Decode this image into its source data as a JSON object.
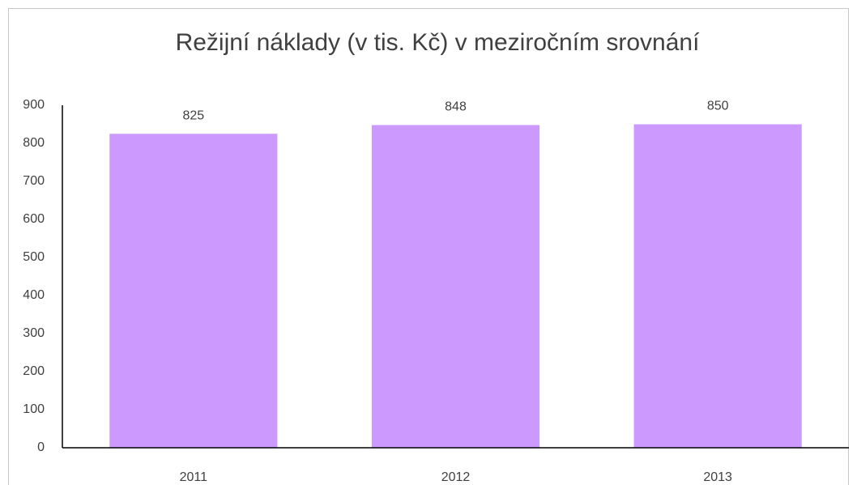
{
  "chart_data": {
    "type": "bar",
    "title": "Režijní náklady (v tis. Kč) v meziročním srovnání",
    "categories": [
      "2011",
      "2012",
      "2013"
    ],
    "values": [
      825,
      848,
      850
    ],
    "color": "#cc99ff",
    "ylim": [
      0,
      900
    ],
    "yticks": [
      0,
      100,
      200,
      300,
      400,
      500,
      600,
      700,
      800,
      900
    ],
    "grid": false
  }
}
